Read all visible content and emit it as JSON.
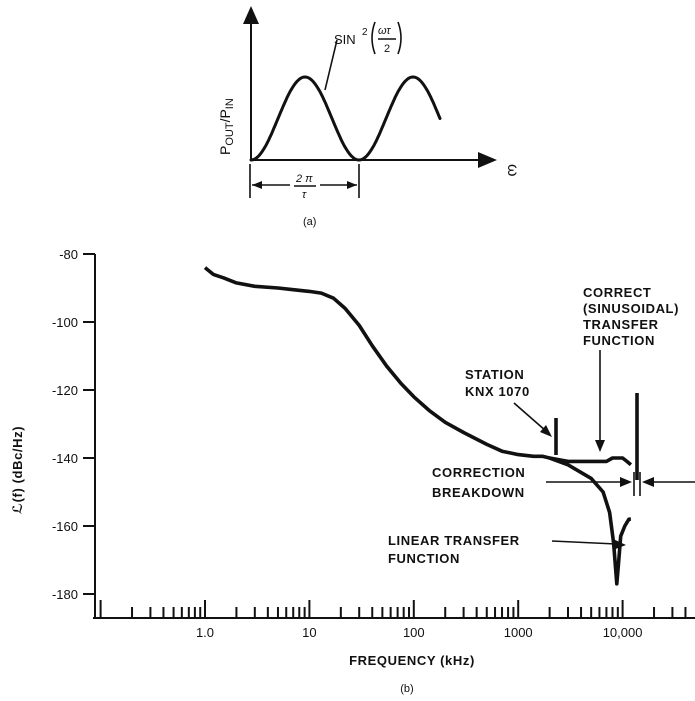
{
  "figure_a": {
    "curve_label_prefix": "SIN",
    "curve_label_exponent": "2",
    "curve_label_num": "ωτ",
    "curve_label_den": "2",
    "y_axis_label_main": "P",
    "y_axis_label_out": "OUT",
    "y_axis_label_sep": "/P",
    "y_axis_label_in": "IN",
    "x_axis_label": "ω",
    "period_num": "2 π",
    "period_den": "τ",
    "caption": "(a)"
  },
  "figure_b": {
    "caption": "(b)",
    "ylabel": "ℒ(f) (dBc/Hz)",
    "xlabel": "FREQUENCY (kHz)",
    "annotations": {
      "correct_1": "CORRECT",
      "correct_2": "(SINUSOIDAL)",
      "correct_3": "TRANSFER",
      "correct_4": "FUNCTION",
      "station_1": "STATION",
      "station_2": "KNX 1070",
      "breakdown_1": "CORRECTION",
      "breakdown_2": "BREAKDOWN",
      "linear_1": "LINEAR TRANSFER",
      "linear_2": "FUNCTION"
    }
  },
  "chart_data": [
    {
      "type": "line",
      "title": "",
      "xlabel": "ω",
      "ylabel": "POUT/PIN",
      "series": [
        {
          "name": "SIN2(ωτ/2)",
          "x": [
            0,
            0.125,
            0.25,
            0.375,
            0.5,
            0.625,
            0.75,
            0.875,
            1.0,
            1.125,
            1.25,
            1.375,
            1.5,
            1.625,
            1.75
          ],
          "values": [
            0,
            0.146,
            0.5,
            0.854,
            1.0,
            0.854,
            0.5,
            0.146,
            0,
            0.146,
            0.5,
            0.854,
            1.0,
            0.854,
            0.5
          ]
        }
      ],
      "annotations": [
        "2π/τ"
      ]
    },
    {
      "type": "line",
      "title": "",
      "xlabel": "FREQUENCY (kHz)",
      "ylabel": "ℒ(f) (dBc/Hz)",
      "x_scale": "log",
      "xlim": [
        0.1,
        30000
      ],
      "ylim": [
        -187,
        -78
      ],
      "y_ticks": [
        -80,
        -100,
        -120,
        -140,
        -160,
        -180
      ],
      "x_ticks": [
        "1.0",
        "10",
        "100",
        "1000",
        "10,000"
      ],
      "x_tick_values": [
        1,
        10,
        100,
        1000,
        10000
      ],
      "series": [
        {
          "name": "CORRECT (SINUSOIDAL) TRANSFER FUNCTION",
          "x": [
            1,
            1.2,
            1.5,
            2,
            3,
            5,
            7,
            10,
            13,
            17,
            22,
            30,
            40,
            55,
            75,
            100,
            140,
            200,
            300,
            500,
            700,
            1000,
            1400,
            1700,
            2000,
            3000,
            5000,
            7000,
            8000,
            9000,
            10000,
            11000,
            12000
          ],
          "values": [
            -84,
            -86,
            -87,
            -88.5,
            -89.5,
            -90,
            -90.5,
            -91,
            -91.5,
            -93,
            -96,
            -101,
            -107,
            -113,
            -118,
            -122,
            -126,
            -129.5,
            -132.5,
            -136,
            -138,
            -139,
            -139.5,
            -139.5,
            -140,
            -141,
            -141,
            -141,
            -140,
            -140,
            -140,
            -141,
            -142
          ]
        },
        {
          "name": "LINEAR TRANSFER FUNCTION",
          "x": [
            2000,
            3000,
            5000,
            6500,
            7500,
            8200,
            8800,
            9200,
            9600,
            10500,
            11500,
            12000
          ],
          "values": [
            -140,
            -142,
            -146,
            -150,
            -156,
            -165,
            -177,
            -170,
            -163,
            -160,
            -158,
            -158
          ]
        }
      ],
      "annotations": [
        "STATION KNX 1070",
        "CORRECTION BREAKDOWN"
      ]
    }
  ]
}
